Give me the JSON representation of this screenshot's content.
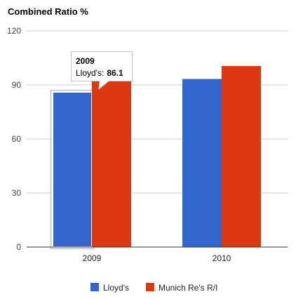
{
  "chart_data": {
    "type": "bar",
    "title": "Combined Ratio %",
    "categories": [
      "2009",
      "2010"
    ],
    "series": [
      {
        "name": "Lloyd's",
        "color": "#3366cc",
        "values": [
          86.1,
          93.3
        ]
      },
      {
        "name": "Munich Re's R/I",
        "color": "#dc3912",
        "values": [
          96.5,
          100.5
        ]
      }
    ],
    "ylim": [
      0,
      120
    ],
    "yticks": [
      0,
      30,
      60,
      90,
      120
    ],
    "grid": true,
    "legend": "bottom",
    "tooltip": {
      "category": "2009",
      "series_label": "Lloyd's:",
      "value": "86.1"
    }
  }
}
